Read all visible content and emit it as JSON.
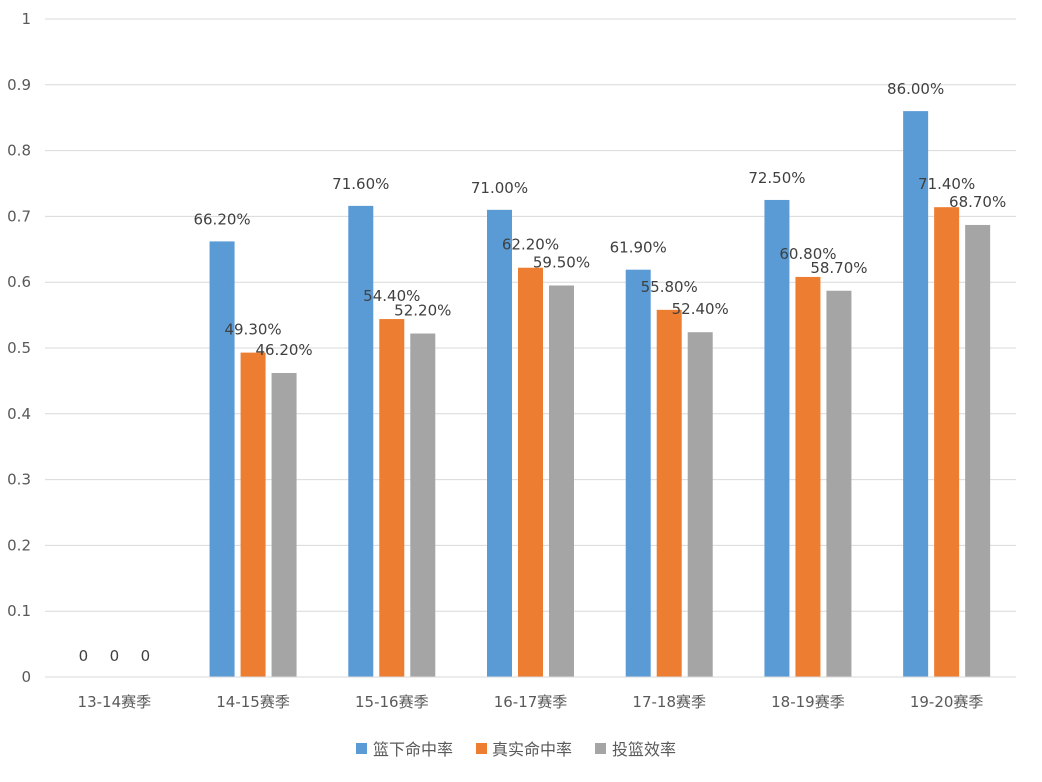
{
  "chart_data": {
    "type": "bar",
    "categories": [
      "13-14赛季",
      "14-15赛季",
      "15-16赛季",
      "16-17赛季",
      "17-18赛季",
      "18-19赛季",
      "19-20赛季"
    ],
    "series": [
      {
        "name": "篮下命中率",
        "color": "#5B9BD5",
        "values": [
          0,
          0.662,
          0.716,
          0.71,
          0.619,
          0.725,
          0.86
        ],
        "labels": [
          "0",
          "66.20%",
          "71.60%",
          "71.00%",
          "61.90%",
          "72.50%",
          "86.00%"
        ]
      },
      {
        "name": "真实命中率",
        "color": "#ED7D31",
        "values": [
          0,
          0.493,
          0.544,
          0.622,
          0.558,
          0.608,
          0.714
        ],
        "labels": [
          "0",
          "49.30%",
          "54.40%",
          "62.20%",
          "55.80%",
          "60.80%",
          "71.40%"
        ]
      },
      {
        "name": "投篮效率",
        "color": "#A5A5A5",
        "values": [
          0,
          0.462,
          0.522,
          0.595,
          0.524,
          0.587,
          0.687
        ],
        "labels": [
          "0",
          "46.20%",
          "52.20%",
          "59.50%",
          "52.40%",
          "58.70%",
          "68.70%"
        ]
      }
    ],
    "ylim": [
      0,
      1
    ],
    "yticks": [
      0,
      0.1,
      0.2,
      0.3,
      0.4,
      0.5,
      0.6,
      0.7,
      0.8,
      0.9,
      1
    ],
    "ytick_labels": [
      "0",
      "0.1",
      "0.2",
      "0.3",
      "0.4",
      "0.5",
      "0.6",
      "0.7",
      "0.8",
      "0.9",
      "1"
    ],
    "grid": true,
    "legend": "bottom",
    "title": "",
    "xlabel": "",
    "ylabel": ""
  }
}
